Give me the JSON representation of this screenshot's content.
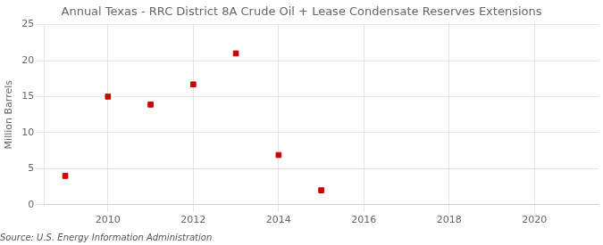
{
  "chart_data": {
    "type": "scatter",
    "title": "Annual Texas - RRC District 8A Crude Oil + Lease Condensate Reserves Extensions",
    "ylabel": "Million Barrels",
    "source": "Source: U.S. Energy Information Administration",
    "x": [
      2009,
      2010,
      2011,
      2012,
      2013,
      2014,
      2015
    ],
    "values": [
      4.0,
      15.0,
      13.9,
      16.7,
      21.0,
      6.9,
      2.0
    ],
    "color": "#cc0000",
    "marker": "square",
    "xlim": [
      2008.5,
      2021.5
    ],
    "xticks": [
      2010,
      2012,
      2014,
      2016,
      2018,
      2020
    ],
    "ylim": [
      0,
      25
    ],
    "yticks": [
      0,
      5,
      10,
      15,
      20,
      25
    ],
    "grid": true
  }
}
